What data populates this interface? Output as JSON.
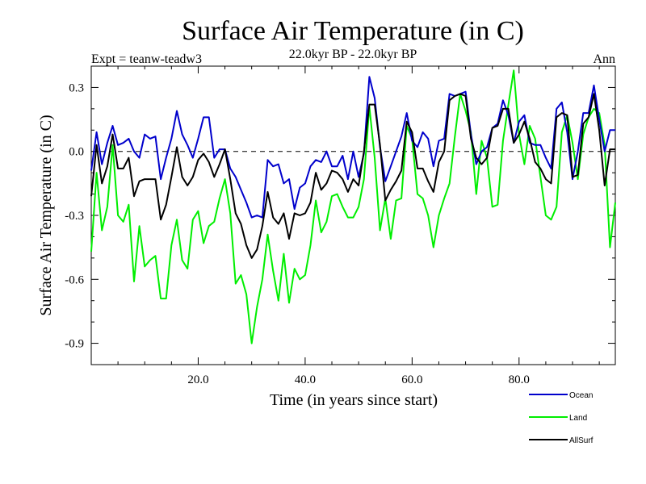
{
  "chart_data": {
    "type": "line",
    "title": "Surface Air Temperature (in C)",
    "subtitle": "22.0kyr BP - 22.0kyr BP",
    "left_label": "Expt = teanw-teadw3",
    "right_label": "Ann",
    "xlabel": "Time (in years since start)",
    "ylabel": "Surface Air Temperature (in C)",
    "xlim": [
      0,
      98
    ],
    "ylim": [
      -1.0,
      0.4
    ],
    "x_ticks": [
      20,
      40,
      60,
      80
    ],
    "x_tick_labels": [
      "20.0",
      "40.0",
      "60.0",
      "80.0"
    ],
    "y_ticks": [
      0.3,
      0.0,
      -0.3,
      -0.6,
      -0.9
    ],
    "y_tick_labels": [
      "0.3",
      "0.0",
      "-0.3",
      "-0.6",
      "-0.9"
    ],
    "reference_line": 0.0,
    "x": [
      0,
      1,
      2,
      3,
      4,
      5,
      6,
      7,
      8,
      9,
      10,
      11,
      12,
      13,
      14,
      15,
      16,
      17,
      18,
      19,
      20,
      21,
      22,
      23,
      24,
      25,
      26,
      27,
      28,
      29,
      30,
      31,
      32,
      33,
      34,
      35,
      36,
      37,
      38,
      39,
      40,
      41,
      42,
      43,
      44,
      45,
      46,
      47,
      48,
      49,
      50,
      51,
      52,
      53,
      54,
      55,
      56,
      57,
      58,
      59,
      60,
      61,
      62,
      63,
      64,
      65,
      66,
      67,
      68,
      69,
      70,
      71,
      72,
      73,
      74,
      75,
      76,
      77,
      78,
      79,
      80,
      81,
      82,
      83,
      84,
      85,
      86,
      87,
      88,
      89,
      90,
      91,
      92,
      93,
      94,
      95,
      96,
      97,
      98
    ],
    "series": [
      {
        "name": "Ocean",
        "color": "#0000cc",
        "values": [
          -0.09,
          0.09,
          -0.06,
          0.04,
          0.12,
          0.03,
          0.04,
          0.06,
          0.0,
          -0.03,
          0.08,
          0.06,
          0.07,
          -0.13,
          -0.03,
          0.06,
          0.19,
          0.08,
          0.03,
          -0.03,
          0.06,
          0.16,
          0.16,
          -0.03,
          0.01,
          0.01,
          -0.08,
          -0.12,
          -0.18,
          -0.24,
          -0.31,
          -0.3,
          -0.31,
          -0.04,
          -0.07,
          -0.06,
          -0.15,
          -0.13,
          -0.27,
          -0.17,
          -0.15,
          -0.07,
          -0.04,
          -0.05,
          0.0,
          -0.07,
          -0.07,
          -0.02,
          -0.13,
          0.0,
          -0.12,
          -0.01,
          0.35,
          0.25,
          0.02,
          -0.14,
          -0.07,
          0.0,
          0.07,
          0.18,
          0.05,
          0.02,
          0.09,
          0.06,
          -0.07,
          0.05,
          0.06,
          0.27,
          0.26,
          0.27,
          0.28,
          0.08,
          -0.06,
          0.0,
          0.02,
          0.11,
          0.13,
          0.24,
          0.17,
          0.04,
          0.14,
          0.17,
          0.04,
          0.03,
          0.03,
          -0.03,
          -0.08,
          0.2,
          0.23,
          0.09,
          -0.13,
          0.0,
          0.18,
          0.18,
          0.31,
          0.15,
          0.0,
          0.1,
          0.1
        ]
      },
      {
        "name": "Land",
        "color": "#00ee00",
        "values": [
          -0.47,
          -0.1,
          -0.37,
          -0.26,
          0.03,
          -0.3,
          -0.33,
          -0.25,
          -0.61,
          -0.35,
          -0.54,
          -0.51,
          -0.49,
          -0.69,
          -0.69,
          -0.44,
          -0.32,
          -0.51,
          -0.55,
          -0.32,
          -0.28,
          -0.43,
          -0.35,
          -0.33,
          -0.22,
          -0.13,
          -0.29,
          -0.62,
          -0.58,
          -0.67,
          -0.9,
          -0.73,
          -0.6,
          -0.39,
          -0.56,
          -0.7,
          -0.48,
          -0.71,
          -0.55,
          -0.6,
          -0.58,
          -0.44,
          -0.23,
          -0.38,
          -0.33,
          -0.21,
          -0.2,
          -0.26,
          -0.31,
          -0.31,
          -0.26,
          -0.13,
          0.21,
          -0.03,
          -0.37,
          -0.22,
          -0.41,
          -0.23,
          -0.22,
          0.12,
          0.06,
          -0.2,
          -0.22,
          -0.3,
          -0.45,
          -0.3,
          -0.22,
          -0.15,
          0.07,
          0.27,
          0.19,
          0.09,
          -0.2,
          0.05,
          -0.03,
          -0.26,
          -0.25,
          0.05,
          0.22,
          0.38,
          0.08,
          -0.06,
          0.12,
          0.06,
          -0.12,
          -0.3,
          -0.32,
          -0.26,
          0.09,
          0.17,
          0.04,
          -0.13,
          0.08,
          0.16,
          0.2,
          0.18,
          0.03,
          -0.45,
          -0.24
        ]
      },
      {
        "name": "AllSurf",
        "color": "#000000",
        "values": [
          -0.21,
          0.03,
          -0.15,
          -0.07,
          0.08,
          -0.08,
          -0.08,
          -0.03,
          -0.21,
          -0.14,
          -0.13,
          -0.13,
          -0.13,
          -0.32,
          -0.25,
          -0.12,
          0.02,
          -0.12,
          -0.16,
          -0.12,
          -0.04,
          -0.01,
          -0.05,
          -0.12,
          -0.06,
          0.01,
          -0.13,
          -0.29,
          -0.34,
          -0.44,
          -0.5,
          -0.46,
          -0.35,
          -0.19,
          -0.31,
          -0.34,
          -0.29,
          -0.41,
          -0.29,
          -0.3,
          -0.29,
          -0.24,
          -0.1,
          -0.18,
          -0.15,
          -0.09,
          -0.1,
          -0.13,
          -0.19,
          -0.13,
          -0.16,
          0.0,
          0.22,
          0.22,
          0.03,
          -0.23,
          -0.18,
          -0.14,
          -0.09,
          0.14,
          0.09,
          -0.08,
          -0.08,
          -0.14,
          -0.19,
          -0.05,
          0.0,
          0.24,
          0.26,
          0.27,
          0.26,
          0.06,
          -0.03,
          -0.06,
          -0.03,
          0.11,
          0.12,
          0.2,
          0.2,
          0.04,
          0.08,
          0.14,
          0.06,
          -0.05,
          -0.08,
          -0.13,
          -0.15,
          0.16,
          0.18,
          0.17,
          -0.12,
          -0.11,
          0.13,
          0.16,
          0.27,
          0.1,
          -0.16,
          0.01,
          0.01
        ]
      }
    ],
    "legend": [
      "Ocean",
      "Land",
      "AllSurf"
    ]
  }
}
